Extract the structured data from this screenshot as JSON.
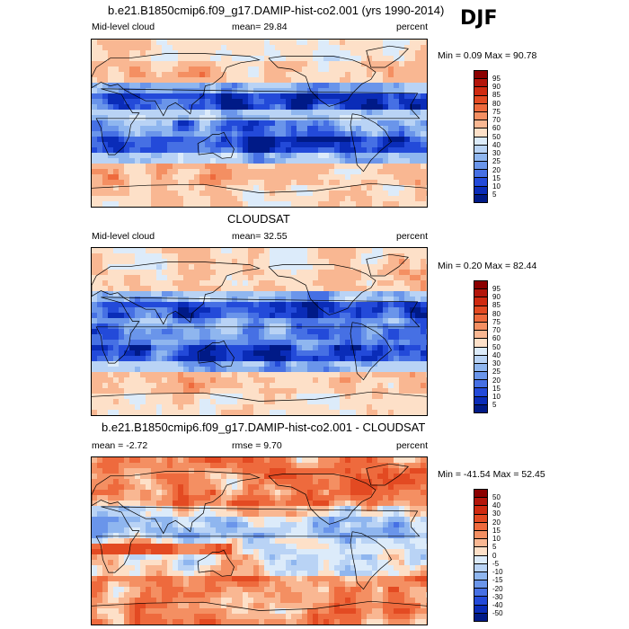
{
  "season": "DJF",
  "panels": [
    {
      "title": "b.e21.B1850cmip6.f09_g17.DAMIP-hist-co2.001 (yrs 1990-2014)",
      "left_label": "Mid-level cloud",
      "center_label": "mean=  29.84",
      "right_label": "percent",
      "minmax": "Min =   0.09 Max =  90.78",
      "levels": [
        "95",
        "90",
        "85",
        "80",
        "75",
        "70",
        "60",
        "50",
        "40",
        "30",
        "25",
        "20",
        "15",
        "10",
        "5"
      ],
      "palette": [
        "#8b0000",
        "#b3150a",
        "#cf2a10",
        "#e34a22",
        "#ee6a3d",
        "#f48f62",
        "#f9b792",
        "#fde0c8",
        "#dcebfa",
        "#b9d3f5",
        "#8fb6ef",
        "#6a95ea",
        "#4670e4",
        "#234ad9",
        "#0a2cb8",
        "#001a87"
      ]
    },
    {
      "title": "CLOUDSAT",
      "left_label": "Mid-level cloud",
      "center_label": "mean=  32.55",
      "right_label": "percent",
      "minmax": "Min =   0.20 Max =  82.44",
      "levels": [
        "95",
        "90",
        "85",
        "80",
        "75",
        "70",
        "60",
        "50",
        "40",
        "30",
        "25",
        "20",
        "15",
        "10",
        "5"
      ],
      "palette": [
        "#8b0000",
        "#b3150a",
        "#cf2a10",
        "#e34a22",
        "#ee6a3d",
        "#f48f62",
        "#f9b792",
        "#fde0c8",
        "#dcebfa",
        "#b9d3f5",
        "#8fb6ef",
        "#6a95ea",
        "#4670e4",
        "#234ad9",
        "#0a2cb8",
        "#001a87"
      ]
    },
    {
      "title": "b.e21.B1850cmip6.f09_g17.DAMIP-hist-co2.001 - CLOUDSAT",
      "left_label": "mean =  -2.72",
      "center_label": "rmse =   9.70",
      "right_label": "percent",
      "minmax": "Min = -41.54 Max =  52.45",
      "levels": [
        "50",
        "40",
        "30",
        "20",
        "15",
        "10",
        "5",
        "0",
        "-5",
        "-10",
        "-15",
        "-20",
        "-30",
        "-40",
        "-50"
      ],
      "palette": [
        "#8b0000",
        "#b3150a",
        "#cf2a10",
        "#e34a22",
        "#ee6a3d",
        "#f48f62",
        "#f9b792",
        "#fde0c8",
        "#dcebfa",
        "#b9d3f5",
        "#8fb6ef",
        "#6a95ea",
        "#4670e4",
        "#234ad9",
        "#0a2cb8",
        "#001a87"
      ]
    }
  ],
  "chart_data": [
    {
      "type": "heatmap",
      "title": "b.e21.B1850cmip6.f09_g17.DAMIP-hist-co2.001 (yrs 1990-2014)",
      "variable": "Mid-level cloud",
      "units": "percent",
      "mean": 29.84,
      "min": 0.09,
      "max": 90.78,
      "levels": [
        5,
        10,
        15,
        20,
        25,
        30,
        40,
        50,
        60,
        70,
        75,
        80,
        85,
        90,
        95
      ]
    },
    {
      "type": "heatmap",
      "title": "CLOUDSAT",
      "variable": "Mid-level cloud",
      "units": "percent",
      "mean": 32.55,
      "min": 0.2,
      "max": 82.44,
      "levels": [
        5,
        10,
        15,
        20,
        25,
        30,
        40,
        50,
        60,
        70,
        75,
        80,
        85,
        90,
        95
      ]
    },
    {
      "type": "heatmap",
      "title": "b.e21.B1850cmip6.f09_g17.DAMIP-hist-co2.001 - CLOUDSAT",
      "units": "percent",
      "mean": -2.72,
      "rmse": 9.7,
      "min": -41.54,
      "max": 52.45,
      "levels": [
        -50,
        -40,
        -30,
        -20,
        -15,
        -10,
        -5,
        0,
        5,
        10,
        15,
        20,
        30,
        40,
        50
      ]
    }
  ]
}
